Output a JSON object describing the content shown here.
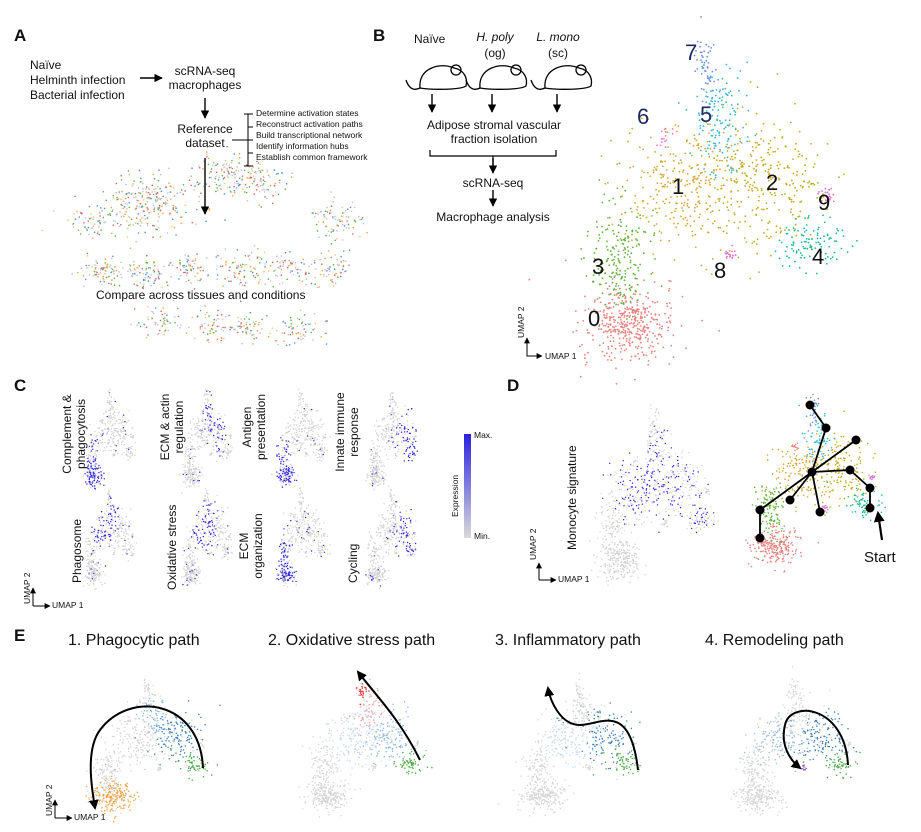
{
  "panels": {
    "a": "A",
    "b": "B",
    "c": "C",
    "d": "D",
    "e": "E"
  },
  "panelA": {
    "conditions": [
      "Naïve",
      "Helminth infection",
      "Bacterial infection"
    ],
    "scrna": [
      "scRNA-seq",
      "macrophages"
    ],
    "reference": [
      "Reference",
      "dataset"
    ],
    "bullets": [
      "Determine activation states",
      "Reconstruct activation paths",
      "Build transcriptional network",
      "Identify information hubs",
      "Establish common framework"
    ],
    "compare": "Compare across tissues and conditions"
  },
  "panelB": {
    "mice": [
      {
        "name": "Naïve",
        "sub": ""
      },
      {
        "name": "H. poly",
        "sub": "(og)"
      },
      {
        "name": "L. mono",
        "sub": "(sc)"
      }
    ],
    "step1": [
      "Adipose stromal vascular",
      "fraction isolation"
    ],
    "step2": "scRNA-seq",
    "step3": "Macrophage analysis",
    "clusters": [
      {
        "id": "0",
        "color": "#e8827e"
      },
      {
        "id": "1",
        "color": "#d4a533"
      },
      {
        "id": "2",
        "color": "#c2aa1e"
      },
      {
        "id": "3",
        "color": "#5fb23c"
      },
      {
        "id": "4",
        "color": "#1dba98"
      },
      {
        "id": "5",
        "color": "#33b8d0"
      },
      {
        "id": "6",
        "color": "#f07ac0"
      },
      {
        "id": "7",
        "color": "#6a8ee2"
      },
      {
        "id": "8",
        "color": "#de77d8"
      },
      {
        "id": "9",
        "color": "#e06ed6"
      }
    ],
    "umap1": "UMAP 1",
    "umap2": "UMAP 2"
  },
  "panelC": {
    "signatures": [
      [
        "Complement &",
        "phagocytosis"
      ],
      [
        "ECM & actin",
        "regulation"
      ],
      [
        "Antigen",
        "presentation"
      ],
      [
        "Innate immune",
        "response"
      ],
      [
        "Phagosome"
      ],
      [
        "Oxidative stress"
      ],
      [
        "ECM",
        "organization"
      ],
      [
        "Cycling"
      ]
    ],
    "legend_title": "Expression",
    "legend_max": "Max.",
    "legend_min": "Min.",
    "scale_colors": {
      "high": "#2b22e0",
      "low": "#d7d7d7"
    },
    "umap1": "UMAP 1",
    "umap2": "UMAP 2"
  },
  "panelD": {
    "signature": "Monocyte signature",
    "start": "Start",
    "umap1": "UMAP 1",
    "umap2": "UMAP 2"
  },
  "panelE": {
    "paths": [
      "1. Phagocytic path",
      "2. Oxidative stress path",
      "3. Inflammatory path",
      "4. Remodeling path"
    ],
    "umap1": "UMAP 1",
    "umap2": "UMAP 2"
  }
}
